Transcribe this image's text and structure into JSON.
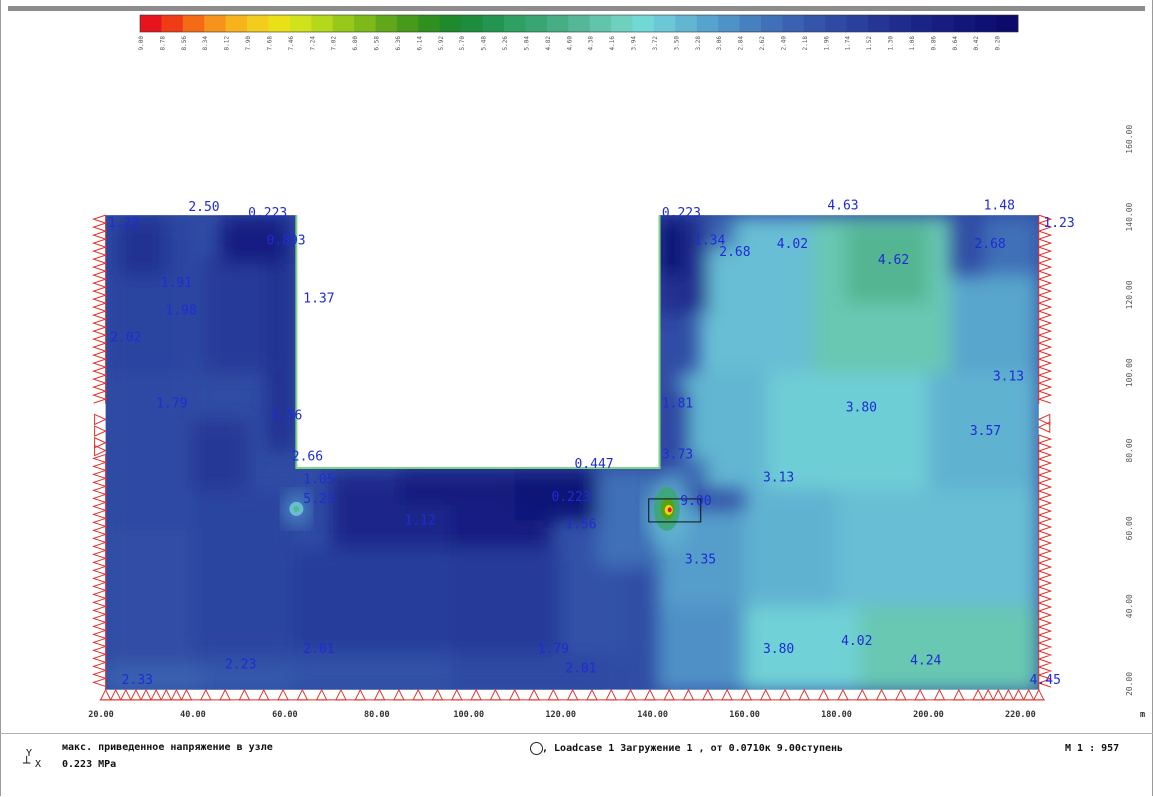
{
  "chart_data": {
    "type": "heatmap",
    "units": "MPa",
    "legend_values": [
      "9.00",
      "8.78",
      "8.56",
      "8.34",
      "8.12",
      "7.90",
      "7.68",
      "7.46",
      "7.24",
      "7.02",
      "6.80",
      "6.58",
      "6.36",
      "6.14",
      "5.92",
      "5.70",
      "5.48",
      "5.26",
      "5.04",
      "4.82",
      "4.60",
      "4.38",
      "4.16",
      "3.94",
      "3.72",
      "3.50",
      "3.28",
      "3.06",
      "2.84",
      "2.62",
      "2.40",
      "2.18",
      "1.96",
      "1.74",
      "1.52",
      "1.30",
      "1.08",
      "0.86",
      "0.64",
      "0.42",
      "0.20"
    ],
    "legend_colors": [
      "#e6141e",
      "#f03c14",
      "#f56a14",
      "#f7921a",
      "#f7b31c",
      "#f2cd1c",
      "#e9e016",
      "#cfe21c",
      "#b3d81c",
      "#97c81a",
      "#7cb919",
      "#60a719",
      "#489a1a",
      "#2f8f1f",
      "#1f8a2d",
      "#1d8c3d",
      "#249550",
      "#2ea062",
      "#39a672",
      "#47ad82",
      "#55b795",
      "#62c4aa",
      "#6fd0c0",
      "#72d8d6",
      "#6cc8d6",
      "#62b6d2",
      "#58a3cd",
      "#4f92c6",
      "#4780bf",
      "#3f70b8",
      "#3a62b1",
      "#3455a9",
      "#2f4aa3",
      "#29409c",
      "#243594",
      "#1f2c8d",
      "#1a2386",
      "#161c80",
      "#121679",
      "#0e1073",
      "#0b0b6c"
    ],
    "x_axis": {
      "ticks": [
        20,
        40,
        60,
        80,
        100,
        120,
        140,
        160,
        180,
        200,
        220
      ],
      "unit": "m"
    },
    "y_axis": {
      "ticks": [
        20,
        40,
        60,
        80,
        100,
        120,
        140,
        160
      ]
    },
    "domain": {
      "x": [
        21,
        224
      ],
      "y": [
        18.5,
        140.5
      ]
    },
    "cutout": {
      "x": [
        62.5,
        141.5
      ],
      "y": [
        75.5,
        140.5
      ]
    },
    "hotspots": [
      {
        "x": 143.5,
        "y": 65,
        "value": 9.0
      },
      {
        "x": 62.5,
        "y": 65,
        "value": 5.23
      }
    ],
    "labels": [
      {
        "text": "2.50",
        "x": 39,
        "y": 141.5
      },
      {
        "text": "1.23",
        "x": 21.5,
        "y": 137.5
      },
      {
        "text": "0.223",
        "x": 52,
        "y": 140
      },
      {
        "text": "0.893",
        "x": 56,
        "y": 133
      },
      {
        "text": "1.91",
        "x": 33,
        "y": 122
      },
      {
        "text": "1.98",
        "x": 34,
        "y": 115
      },
      {
        "text": "2.02",
        "x": 22,
        "y": 108
      },
      {
        "text": "1.37",
        "x": 64,
        "y": 118
      },
      {
        "text": "1.79",
        "x": 32,
        "y": 91
      },
      {
        "text": "1.56",
        "x": 57,
        "y": 88
      },
      {
        "text": "2.66",
        "x": 61.5,
        "y": 77.5
      },
      {
        "text": "1.05",
        "x": 64,
        "y": 71.5
      },
      {
        "text": "5.23",
        "x": 64,
        "y": 66.5
      },
      {
        "text": "1.12",
        "x": 86,
        "y": 61
      },
      {
        "text": "0.447",
        "x": 123,
        "y": 75.5
      },
      {
        "text": "0.223",
        "x": 118,
        "y": 67
      },
      {
        "text": "1.56",
        "x": 121,
        "y": 60
      },
      {
        "text": "1.81",
        "x": 142,
        "y": 91
      },
      {
        "text": "3.73",
        "x": 142,
        "y": 78
      },
      {
        "text": "9.00",
        "x": 146,
        "y": 66
      },
      {
        "text": "0.223",
        "x": 142,
        "y": 140
      },
      {
        "text": "1.34",
        "x": 149,
        "y": 133
      },
      {
        "text": "2.68",
        "x": 154.5,
        "y": 130
      },
      {
        "text": "4.63",
        "x": 178,
        "y": 142
      },
      {
        "text": "4.02",
        "x": 167,
        "y": 132
      },
      {
        "text": "4.62",
        "x": 189,
        "y": 128
      },
      {
        "text": "1.48",
        "x": 212,
        "y": 142
      },
      {
        "text": "2.68",
        "x": 210,
        "y": 132
      },
      {
        "text": "1.23",
        "x": 225,
        "y": 137.5
      },
      {
        "text": "3.80",
        "x": 182,
        "y": 90
      },
      {
        "text": "3.13",
        "x": 214,
        "y": 98
      },
      {
        "text": "3.57",
        "x": 209,
        "y": 84
      },
      {
        "text": "3.13",
        "x": 164,
        "y": 72
      },
      {
        "text": "3.35",
        "x": 147,
        "y": 51
      },
      {
        "text": "2.01",
        "x": 64,
        "y": 28
      },
      {
        "text": "2.23",
        "x": 47,
        "y": 24
      },
      {
        "text": "1.79",
        "x": 115,
        "y": 28
      },
      {
        "text": "2.01",
        "x": 121,
        "y": 23
      },
      {
        "text": "3.80",
        "x": 164,
        "y": 28
      },
      {
        "text": "4.02",
        "x": 181,
        "y": 30
      },
      {
        "text": "4.24",
        "x": 196,
        "y": 25
      },
      {
        "text": "2.33",
        "x": 24.5,
        "y": 20
      },
      {
        "text": "4.45",
        "x": 222,
        "y": 20
      }
    ]
  },
  "footer": {
    "axis_y": "Y",
    "axis_x": "X",
    "description": "макс. приведенное напряжение в узле",
    "min_value": "0.223 MPa",
    "loadcase_text": ", Loadcase 1  Загружение 1   , от  0.0710к 9.00ступень",
    "scale": "M 1 : 957"
  }
}
